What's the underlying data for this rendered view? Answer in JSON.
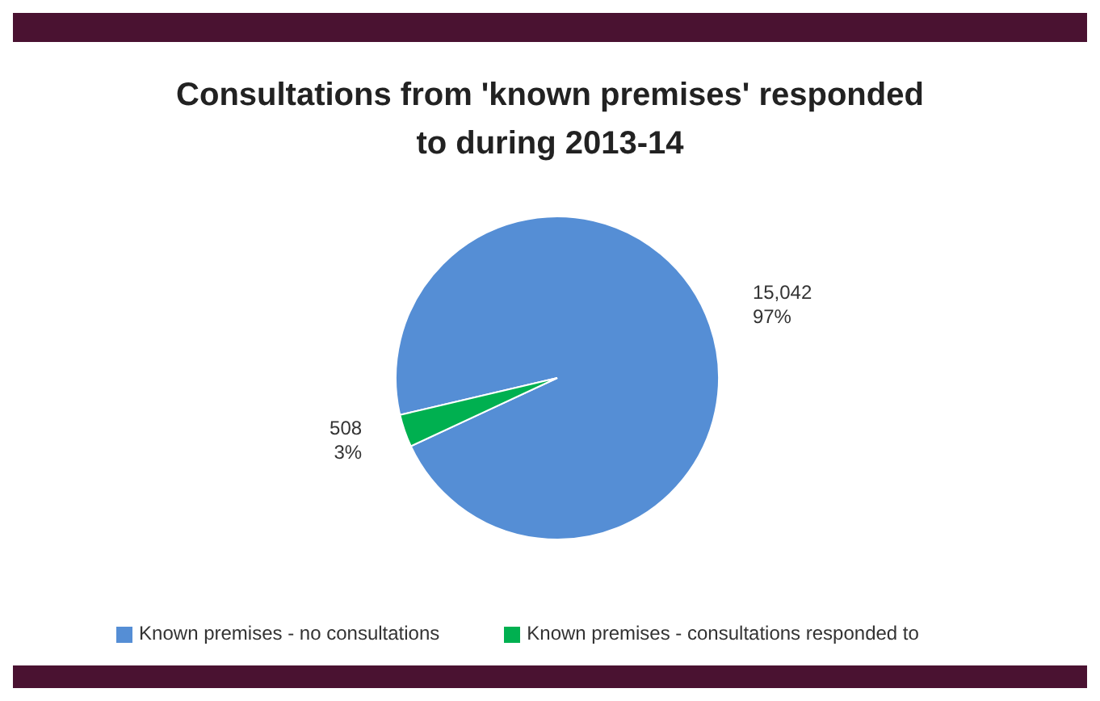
{
  "chart_data": {
    "type": "pie",
    "title": "Consultations from 'known premises' responded to during 2013-14",
    "categories": [
      "Known premises - no consultations",
      "Known premises - consultations responded to"
    ],
    "values": [
      15042,
      508
    ],
    "colors": [
      "#558ed5",
      "#00b050"
    ],
    "value_labels": [
      "15,042\n97%",
      "508\n3%"
    ],
    "legend": "bottom"
  }
}
